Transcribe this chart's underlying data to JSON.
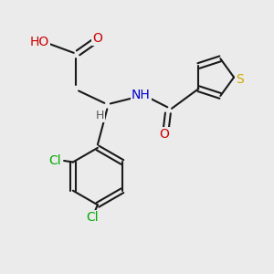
{
  "bg_color": "#ebebeb",
  "bond_color": "#1a1a1a",
  "bond_width": 1.5,
  "colors": {
    "O": "#cc0000",
    "N": "#0000cc",
    "S": "#ccaa00",
    "Cl": "#00aa00",
    "H": "#555555",
    "C": "#1a1a1a"
  },
  "font_size": 10.0
}
